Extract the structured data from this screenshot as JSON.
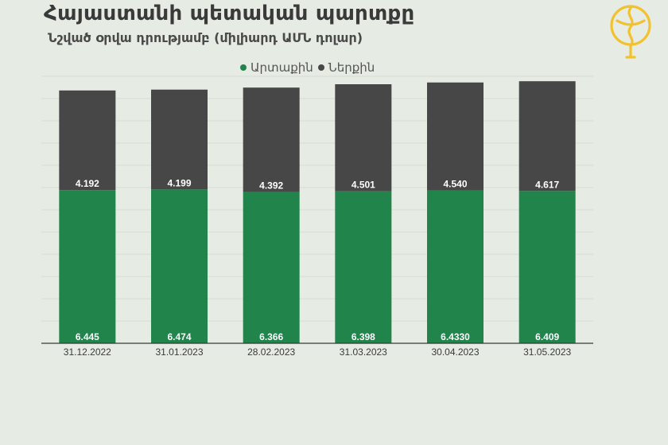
{
  "header": {
    "title": "Հայաստանի պետական պարտքը",
    "subtitle": "Նշված օրվա դրությամբ (միլիարդ ԱՄՆ դոլար)"
  },
  "colors": {
    "external": "#21844b",
    "internal": "#474747",
    "background": "#e6ebe4",
    "logo": "#f2c12e"
  },
  "logo_icon": "stylized-globe-mic-logo",
  "chart_data": {
    "type": "bar",
    "stacked": true,
    "categories": [
      "31.12.2022",
      "31.01.2023",
      "28.02.2023",
      "31.03.2023",
      "30.04.2023",
      "31.05.2023"
    ],
    "series": [
      {
        "name": "Արտաքին",
        "values": [
          6.445,
          6.474,
          6.366,
          6.398,
          6.433,
          6.409
        ],
        "labels": [
          "6.445",
          "6.474",
          "6.366",
          "6.398",
          "6.4330",
          "6.409"
        ]
      },
      {
        "name": "Ներքին",
        "values": [
          4.192,
          4.199,
          4.392,
          4.501,
          4.54,
          4.617
        ],
        "labels": [
          "4.192",
          "4.199",
          "4.392",
          "4.501",
          "4.540",
          "4.617"
        ]
      }
    ],
    "title": "Հայաստանի պետական պարտքը",
    "subtitle": "Նշված օրվա դրությամբ (միլիարդ ԱՄՆ դոլար)",
    "ylim": [
      0,
      11.2
    ],
    "grid": true,
    "legend": "top-center"
  }
}
